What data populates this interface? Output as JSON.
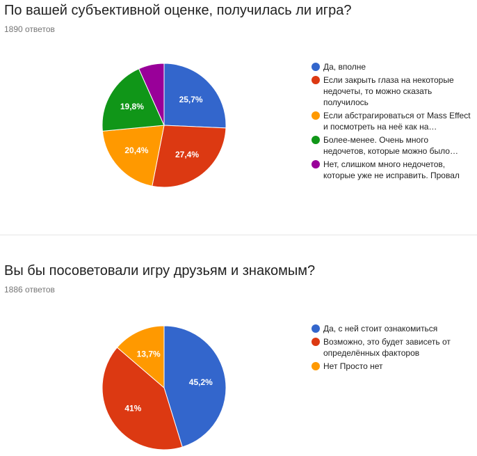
{
  "questions": [
    {
      "title": "По вашей субъективной оценке, получилась ли игра?",
      "responses": "1890 ответов"
    },
    {
      "title": "Вы бы посоветовали игру друзьям и знакомым?",
      "responses": "1886 ответов"
    }
  ],
  "chart_data": [
    {
      "type": "pie",
      "start_angle_deg": 90,
      "direction": "clockwise",
      "legend_position": "right",
      "slices": [
        {
          "label": "Да, вполне",
          "value": 25.7,
          "display": "25,7%",
          "color": "#3366cc"
        },
        {
          "label": "Если закрыть глаза на некоторые недочеты, то можно сказать получилось",
          "value": 27.4,
          "display": "27,4%",
          "color": "#dc3912"
        },
        {
          "label": "Если абстрагироваться от Mass Effect и посмотреть на неё как на…",
          "value": 20.4,
          "display": "20,4%",
          "color": "#ff9900"
        },
        {
          "label": "Более-менее. Очень много недочетов, которые можно было…",
          "value": 19.8,
          "display": "19,8%",
          "color": "#109618"
        },
        {
          "label": "Нет, слишком много недочетов, которые уже не исправить. Провал",
          "value": 6.7,
          "display": "",
          "color": "#990099"
        }
      ]
    },
    {
      "type": "pie",
      "start_angle_deg": 90,
      "direction": "clockwise",
      "legend_position": "right",
      "slices": [
        {
          "label": "Да, с ней стоит ознакомиться",
          "value": 45.2,
          "display": "45,2%",
          "color": "#3366cc"
        },
        {
          "label": "Возможно, это будет зависеть от определённых факторов",
          "value": 41.0,
          "display": "41%",
          "color": "#dc3912"
        },
        {
          "label": "Нет Просто нет",
          "value": 13.7,
          "display": "13,7%",
          "color": "#ff9900"
        }
      ]
    }
  ]
}
